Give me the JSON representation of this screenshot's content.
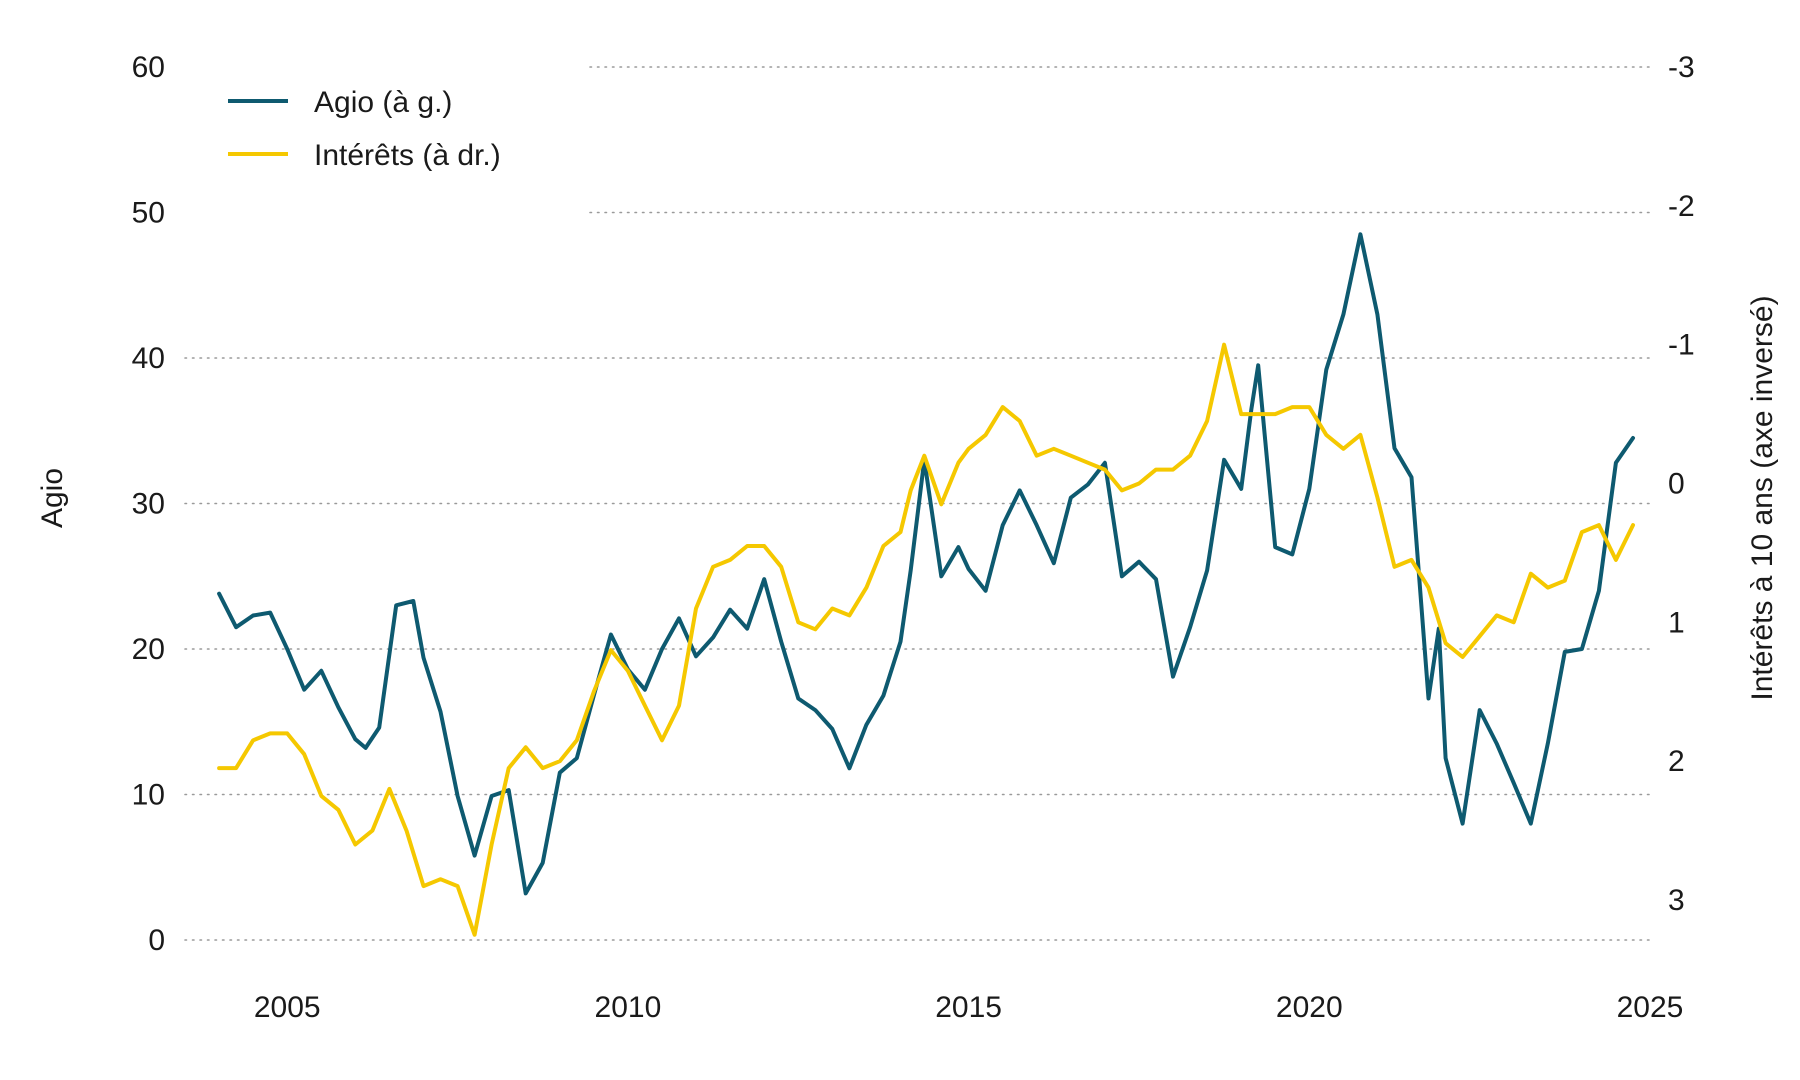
{
  "chart_data": {
    "type": "line",
    "title": "",
    "xlabel": "",
    "ylabel": "Agio",
    "y2label": "Intérêts à 10 ans (axe inversé)",
    "x_ticks": [
      "2005",
      "2010",
      "2015",
      "2020",
      "2025"
    ],
    "y_ticks": [
      "0",
      "10",
      "20",
      "30",
      "40",
      "50",
      "60"
    ],
    "y2_ticks": [
      "-3",
      "-2",
      "-1",
      "0",
      "1",
      "2",
      "3"
    ],
    "xlim": [
      2003.5,
      2025
    ],
    "ylim": [
      0,
      60
    ],
    "y2lim": [
      3.3,
      -3
    ],
    "y2_inverted": true,
    "grid": true,
    "legend_position": "top-left",
    "colors": {
      "agio": "#0e5a70",
      "interets": "#f5c800",
      "grid": "#9a9a9a",
      "text": "#1a1a1a"
    },
    "series": [
      {
        "name": "Agio (à g.)",
        "axis": "left",
        "x": [
          2004.0,
          2004.25,
          2004.5,
          2004.75,
          2005.0,
          2005.25,
          2005.5,
          2005.75,
          2006.0,
          2006.15,
          2006.35,
          2006.6,
          2006.85,
          2007.0,
          2007.25,
          2007.5,
          2007.75,
          2008.0,
          2008.25,
          2008.5,
          2008.75,
          2009.0,
          2009.25,
          2009.5,
          2009.75,
          2010.0,
          2010.25,
          2010.5,
          2010.75,
          2011.0,
          2011.25,
          2011.5,
          2011.75,
          2012.0,
          2012.25,
          2012.5,
          2012.75,
          2013.0,
          2013.25,
          2013.5,
          2013.75,
          2014.0,
          2014.15,
          2014.35,
          2014.6,
          2014.85,
          2015.0,
          2015.25,
          2015.5,
          2015.75,
          2016.0,
          2016.25,
          2016.5,
          2016.75,
          2017.0,
          2017.25,
          2017.5,
          2017.75,
          2018.0,
          2018.25,
          2018.5,
          2018.75,
          2019.0,
          2019.15,
          2019.25,
          2019.5,
          2019.75,
          2020.0,
          2020.25,
          2020.5,
          2020.75,
          2021.0,
          2021.25,
          2021.5,
          2021.75,
          2021.9,
          2022.0,
          2022.25,
          2022.5,
          2022.75,
          2023.0,
          2023.25,
          2023.5,
          2023.75,
          2024.0,
          2024.25,
          2024.5,
          2024.75
        ],
        "values": [
          23.8,
          21.5,
          22.3,
          22.5,
          20.0,
          17.2,
          18.5,
          16.0,
          13.8,
          13.2,
          14.6,
          23.0,
          23.3,
          19.4,
          15.7,
          9.9,
          5.8,
          9.9,
          10.3,
          3.2,
          5.3,
          11.5,
          12.5,
          16.8,
          21.0,
          18.6,
          17.2,
          20.0,
          22.1,
          19.5,
          20.8,
          22.7,
          21.4,
          24.8,
          20.5,
          16.6,
          15.8,
          14.5,
          11.8,
          14.8,
          16.8,
          20.5,
          25.4,
          33.0,
          25.0,
          27.0,
          25.5,
          24.0,
          28.5,
          30.9,
          28.5,
          25.9,
          30.4,
          31.3,
          32.8,
          25.0,
          26.0,
          24.8,
          18.1,
          21.5,
          25.4,
          33.0,
          31.0,
          36.5,
          39.5,
          27.0,
          26.5,
          31.0,
          39.2,
          43.0,
          48.5,
          43.0,
          33.8,
          31.8,
          16.6,
          21.4,
          12.5,
          8.0,
          15.8,
          13.5,
          10.8,
          8.0,
          13.5,
          19.8,
          20.0,
          24.0,
          32.8,
          34.5
        ]
      },
      {
        "name": "Intérêts (à dr.)",
        "axis": "right",
        "x": [
          2004.0,
          2004.25,
          2004.5,
          2004.75,
          2005.0,
          2005.25,
          2005.5,
          2005.75,
          2006.0,
          2006.25,
          2006.5,
          2006.75,
          2007.0,
          2007.25,
          2007.5,
          2007.75,
          2008.0,
          2008.25,
          2008.5,
          2008.75,
          2009.0,
          2009.25,
          2009.5,
          2009.75,
          2010.0,
          2010.25,
          2010.5,
          2010.75,
          2011.0,
          2011.25,
          2011.5,
          2011.75,
          2012.0,
          2012.25,
          2012.5,
          2012.75,
          2013.0,
          2013.25,
          2013.5,
          2013.75,
          2014.0,
          2014.15,
          2014.35,
          2014.6,
          2014.85,
          2015.0,
          2015.25,
          2015.5,
          2015.75,
          2016.0,
          2016.25,
          2016.5,
          2016.75,
          2017.0,
          2017.25,
          2017.5,
          2017.75,
          2018.0,
          2018.25,
          2018.5,
          2018.75,
          2019.0,
          2019.25,
          2019.5,
          2019.75,
          2020.0,
          2020.25,
          2020.5,
          2020.75,
          2021.0,
          2021.25,
          2021.5,
          2021.75,
          2022.0,
          2022.25,
          2022.5,
          2022.75,
          2023.0,
          2023.25,
          2023.5,
          2023.75,
          2024.0,
          2024.25,
          2024.5,
          2024.75
        ],
        "values": [
          2.05,
          2.05,
          1.85,
          1.8,
          1.8,
          1.95,
          2.25,
          2.35,
          2.6,
          2.5,
          2.2,
          2.5,
          2.9,
          2.85,
          2.9,
          3.25,
          2.6,
          2.05,
          1.9,
          2.05,
          2.0,
          1.85,
          1.5,
          1.2,
          1.35,
          1.6,
          1.85,
          1.6,
          0.9,
          0.6,
          0.55,
          0.45,
          0.45,
          0.6,
          1.0,
          1.05,
          0.9,
          0.95,
          0.75,
          0.45,
          0.35,
          0.05,
          -0.2,
          0.15,
          -0.15,
          -0.25,
          -0.35,
          -0.55,
          -0.45,
          -0.2,
          -0.25,
          -0.2,
          -0.15,
          -0.1,
          0.05,
          0.0,
          -0.1,
          -0.1,
          -0.2,
          -0.45,
          -1.0,
          -0.5,
          -0.5,
          -0.5,
          -0.55,
          -0.55,
          -0.35,
          -0.25,
          -0.35,
          0.1,
          0.6,
          0.55,
          0.75,
          1.15,
          1.25,
          1.1,
          0.95,
          1.0,
          0.65,
          0.75,
          0.7,
          0.35,
          0.3,
          0.55,
          0.3
        ]
      }
    ]
  }
}
